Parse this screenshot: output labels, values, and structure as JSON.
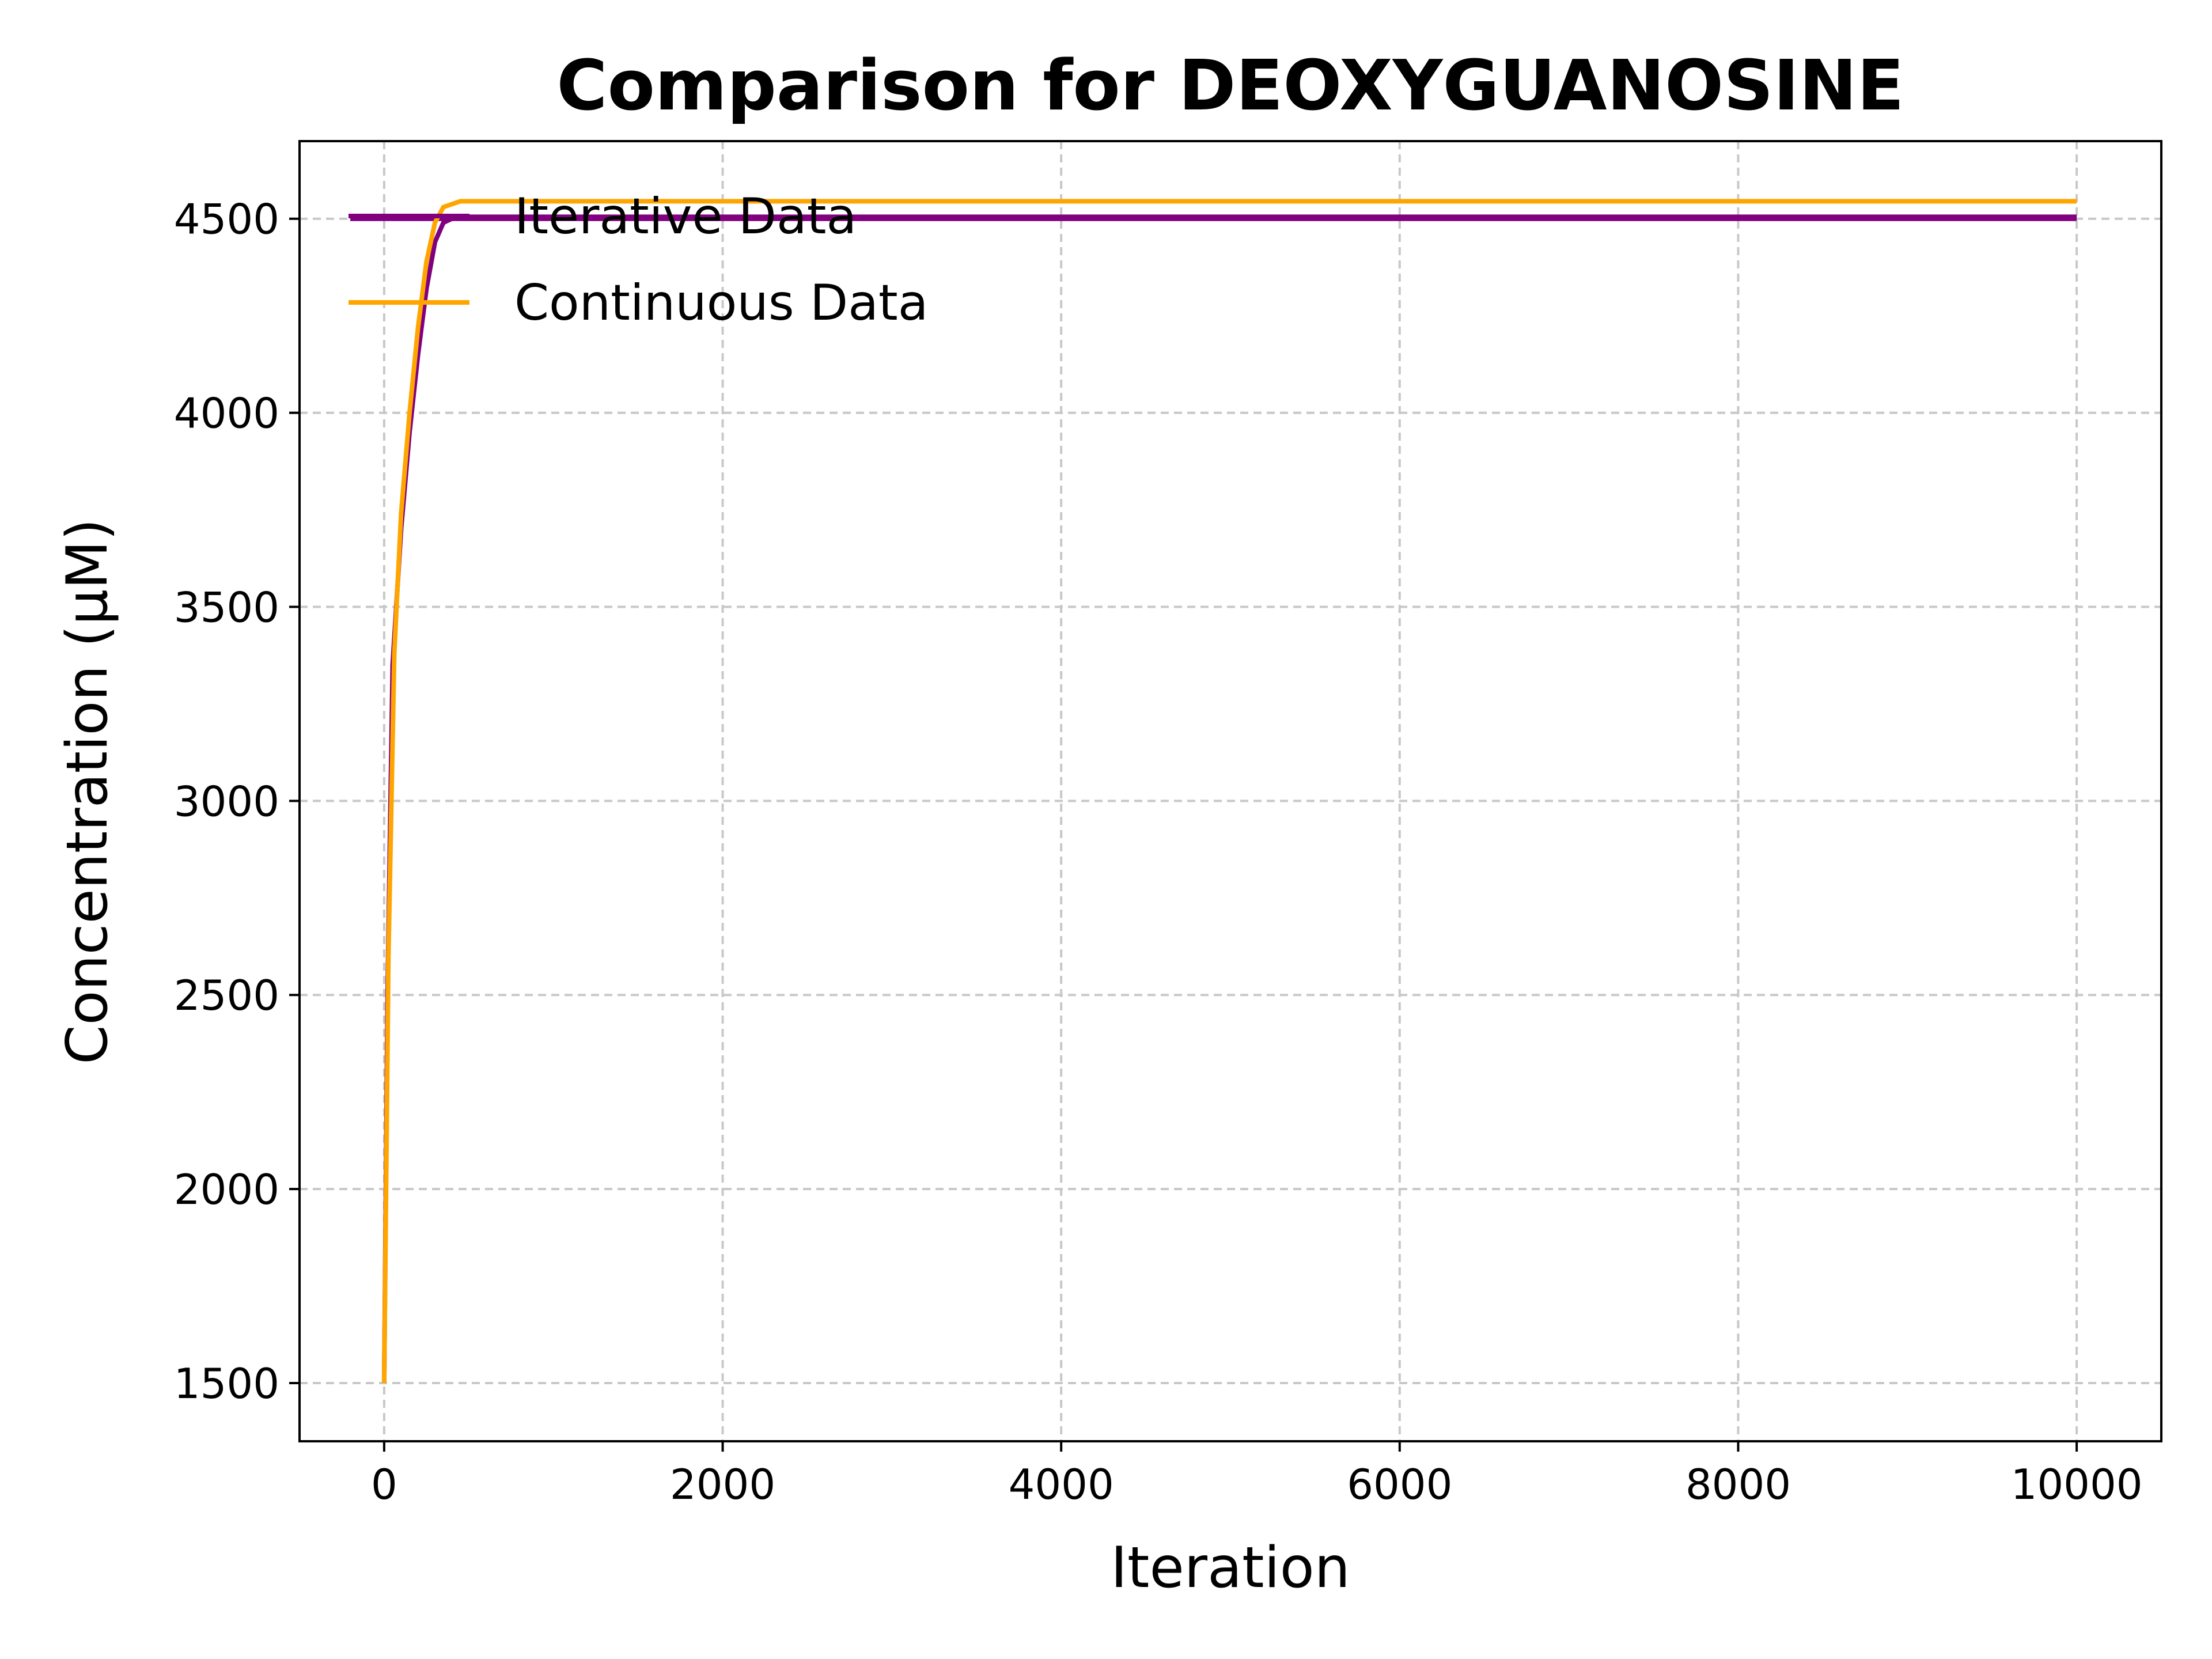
{
  "chart_data": {
    "type": "line",
    "title": "Comparison for DEOXYGUANOSINE",
    "xlabel": "Iteration",
    "ylabel": "Concentration (μM)",
    "xlim": [
      -500,
      10500
    ],
    "ylim": [
      1350,
      4700
    ],
    "xticks": [
      0,
      2000,
      4000,
      6000,
      8000,
      10000
    ],
    "yticks": [
      1500,
      2000,
      2500,
      3000,
      3500,
      4000,
      4500
    ],
    "grid": true,
    "legend_position": "top-left",
    "series": [
      {
        "name": "Iterative Data",
        "color": "#800080",
        "points": [
          [
            -200,
            4500
          ],
          [
            10000,
            4500
          ]
        ]
      },
      {
        "name": "Iterative Data",
        "color": "#800080",
        "points": [
          [
            0,
            1500
          ],
          [
            20,
            2500
          ],
          [
            50,
            3350
          ],
          [
            100,
            3700
          ],
          [
            150,
            3950
          ],
          [
            200,
            4150
          ],
          [
            250,
            4320
          ],
          [
            300,
            4440
          ],
          [
            350,
            4490
          ],
          [
            400,
            4500
          ],
          [
            500,
            4505
          ],
          [
            10000,
            4505
          ]
        ]
      },
      {
        "name": "Continuous Data",
        "color": "#FFA500",
        "points": [
          [
            0,
            1500
          ],
          [
            25,
            2600
          ],
          [
            60,
            3380
          ],
          [
            100,
            3740
          ],
          [
            150,
            4000
          ],
          [
            200,
            4220
          ],
          [
            250,
            4390
          ],
          [
            300,
            4490
          ],
          [
            350,
            4530
          ],
          [
            450,
            4545
          ],
          [
            10000,
            4545
          ]
        ]
      }
    ]
  },
  "legend": [
    {
      "label": "Iterative Data",
      "color": "#800080"
    },
    {
      "label": "Continuous Data",
      "color": "#FFA500"
    }
  ]
}
